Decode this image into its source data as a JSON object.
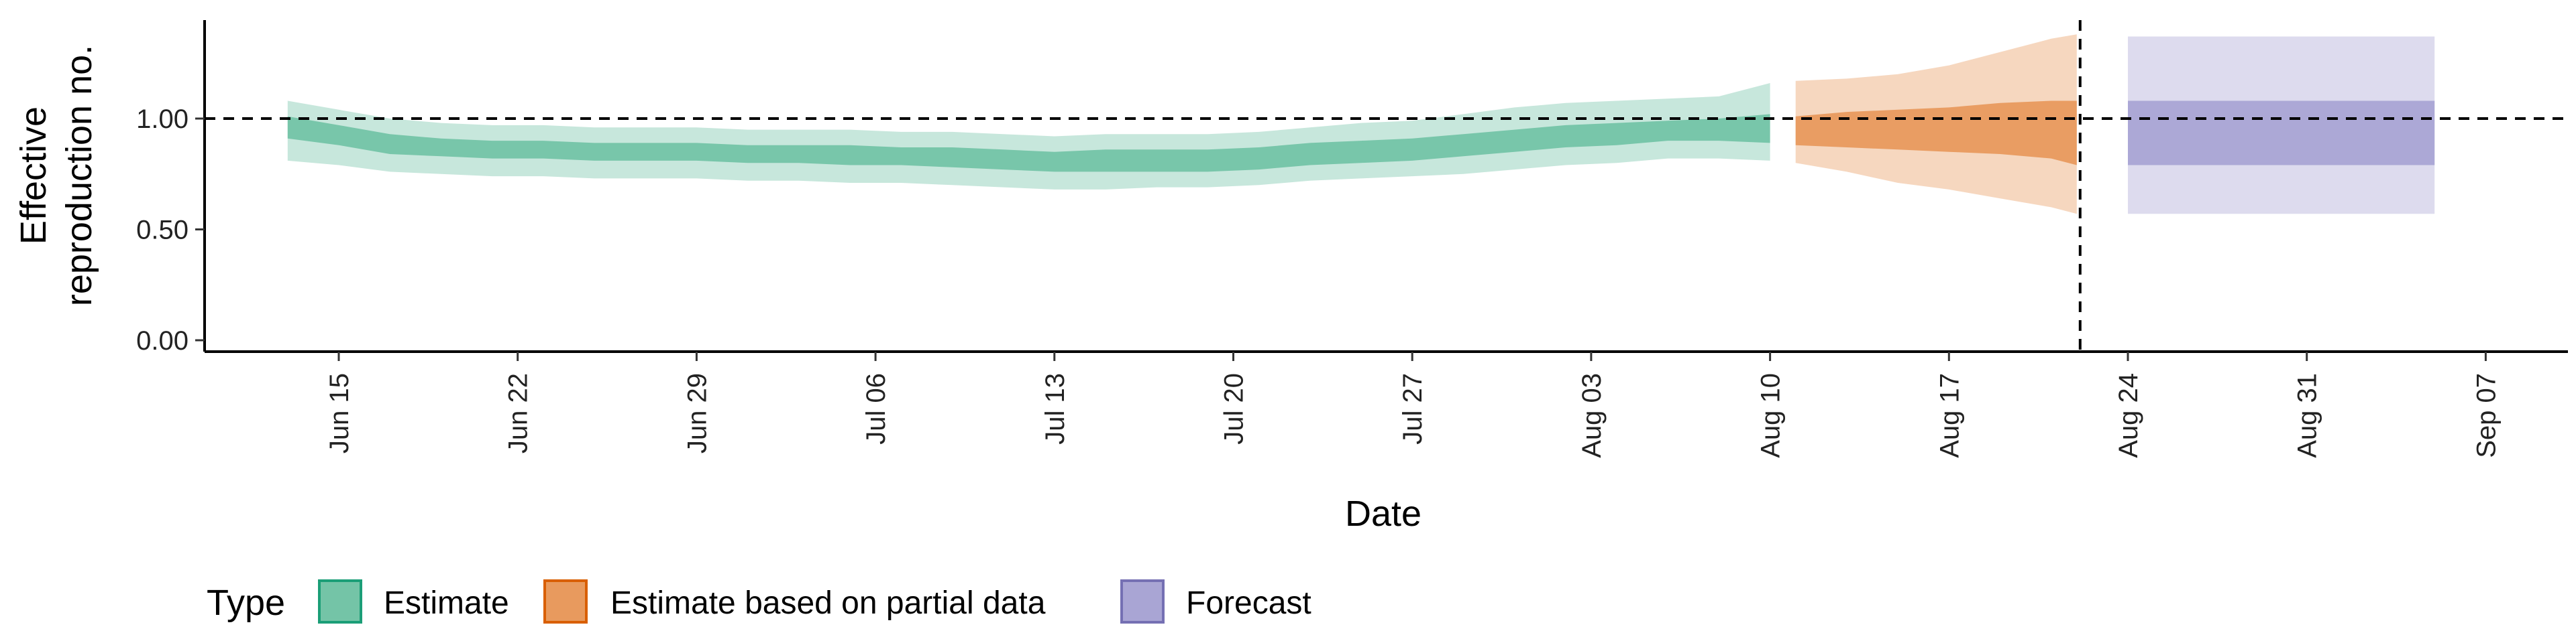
{
  "chart_data": {
    "type": "area",
    "title": "",
    "xlabel": "Date",
    "ylabel_lines": [
      "Effective",
      "reproduction no."
    ],
    "y_ticks": [
      0.0,
      0.5,
      1.0
    ],
    "y_tick_labels": [
      "0.00",
      "0.50",
      "1.00"
    ],
    "ylim": [
      0.0,
      1.4
    ],
    "x_range": [
      "2020-06-09",
      "2020-09-11"
    ],
    "x_tick_dates": [
      "2020-06-15",
      "2020-06-22",
      "2020-06-29",
      "2020-07-06",
      "2020-07-13",
      "2020-07-20",
      "2020-07-27",
      "2020-08-03",
      "2020-08-10",
      "2020-08-17",
      "2020-08-24",
      "2020-08-31",
      "2020-09-07"
    ],
    "x_tick_labels": [
      "Jun 15",
      "Jun 22",
      "Jun 29",
      "Jul 06",
      "Jul 13",
      "Jul 20",
      "Jul 27",
      "Aug 03",
      "Aug 10",
      "Aug 17",
      "Aug 24",
      "Aug 31",
      "Sep 07"
    ],
    "reference_line_y": 1.0,
    "forecast_date": "2020-08-22",
    "legend": {
      "title": "Type",
      "position": "bottom"
    },
    "series": [
      {
        "name": "Estimate",
        "color": "#1b9e77",
        "fill": "#74c4a7",
        "dates": [
          "2020-06-13",
          "2020-06-15",
          "2020-06-17",
          "2020-06-19",
          "2020-06-21",
          "2020-06-23",
          "2020-06-25",
          "2020-06-27",
          "2020-06-29",
          "2020-07-01",
          "2020-07-03",
          "2020-07-05",
          "2020-07-07",
          "2020-07-09",
          "2020-07-11",
          "2020-07-13",
          "2020-07-15",
          "2020-07-17",
          "2020-07-19",
          "2020-07-21",
          "2020-07-23",
          "2020-07-25",
          "2020-07-27",
          "2020-07-29",
          "2020-07-31",
          "2020-08-02",
          "2020-08-04",
          "2020-08-06",
          "2020-08-08",
          "2020-08-10"
        ],
        "median": [
          0.96,
          0.92,
          0.88,
          0.87,
          0.86,
          0.86,
          0.85,
          0.85,
          0.85,
          0.84,
          0.84,
          0.84,
          0.83,
          0.83,
          0.82,
          0.81,
          0.81,
          0.81,
          0.81,
          0.82,
          0.84,
          0.85,
          0.86,
          0.88,
          0.9,
          0.92,
          0.93,
          0.94,
          0.95,
          0.96
        ],
        "inner_lower": [
          0.91,
          0.88,
          0.84,
          0.83,
          0.82,
          0.82,
          0.81,
          0.81,
          0.81,
          0.8,
          0.8,
          0.79,
          0.79,
          0.78,
          0.77,
          0.76,
          0.76,
          0.76,
          0.76,
          0.77,
          0.79,
          0.8,
          0.81,
          0.83,
          0.85,
          0.87,
          0.88,
          0.9,
          0.9,
          0.89
        ],
        "inner_upper": [
          1.01,
          0.97,
          0.93,
          0.91,
          0.9,
          0.9,
          0.89,
          0.89,
          0.89,
          0.88,
          0.88,
          0.88,
          0.87,
          0.87,
          0.86,
          0.85,
          0.86,
          0.86,
          0.86,
          0.87,
          0.89,
          0.9,
          0.91,
          0.93,
          0.95,
          0.97,
          0.98,
          0.99,
          1.0,
          1.02
        ],
        "outer_lower": [
          0.81,
          0.79,
          0.76,
          0.75,
          0.74,
          0.74,
          0.73,
          0.73,
          0.73,
          0.72,
          0.72,
          0.71,
          0.71,
          0.7,
          0.69,
          0.68,
          0.68,
          0.69,
          0.69,
          0.7,
          0.72,
          0.73,
          0.74,
          0.75,
          0.77,
          0.79,
          0.8,
          0.82,
          0.82,
          0.81
        ],
        "outer_upper": [
          1.08,
          1.04,
          1.0,
          0.98,
          0.97,
          0.97,
          0.96,
          0.96,
          0.96,
          0.95,
          0.95,
          0.95,
          0.94,
          0.94,
          0.93,
          0.92,
          0.93,
          0.93,
          0.93,
          0.94,
          0.96,
          0.98,
          0.99,
          1.02,
          1.05,
          1.07,
          1.08,
          1.09,
          1.1,
          1.16
        ]
      },
      {
        "name": "Estimate based on partial data",
        "color": "#d95f02",
        "fill": "#e89a5e",
        "dates": [
          "2020-08-11",
          "2020-08-13",
          "2020-08-15",
          "2020-08-17",
          "2020-08-19",
          "2020-08-21",
          "2020-08-22"
        ],
        "median": [
          0.95,
          0.95,
          0.95,
          0.95,
          0.95,
          0.94,
          0.93
        ],
        "inner_lower": [
          0.88,
          0.87,
          0.86,
          0.85,
          0.84,
          0.82,
          0.79
        ],
        "inner_upper": [
          1.01,
          1.03,
          1.04,
          1.05,
          1.07,
          1.08,
          1.08
        ],
        "outer_lower": [
          0.8,
          0.76,
          0.71,
          0.68,
          0.64,
          0.6,
          0.57
        ],
        "outer_upper": [
          1.17,
          1.18,
          1.2,
          1.24,
          1.3,
          1.36,
          1.38
        ]
      },
      {
        "name": "Forecast",
        "color": "#7570b3",
        "fill": "#a9a5d4",
        "dates": [
          "2020-08-24",
          "2020-09-05"
        ],
        "inner_lower": [
          0.79,
          0.79
        ],
        "inner_upper": [
          1.08,
          1.08
        ],
        "outer_lower": [
          0.57,
          0.57
        ],
        "outer_upper": [
          1.37,
          1.37
        ]
      }
    ]
  }
}
